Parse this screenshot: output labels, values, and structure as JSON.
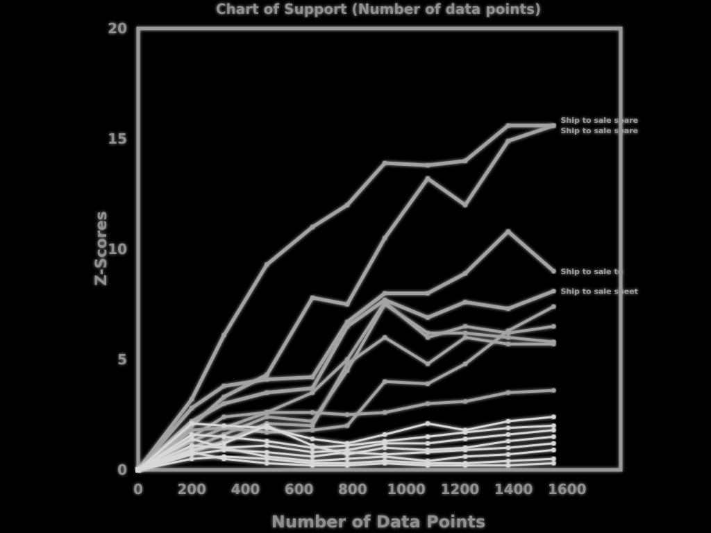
{
  "chart_data": {
    "type": "line",
    "title": "Chart of Support (Number of data points)",
    "xlabel": "Number of Data Points",
    "ylabel": "Z-Scores",
    "xlim": [
      0,
      1800
    ],
    "ylim": [
      0,
      20
    ],
    "x_ticks": [
      0,
      200,
      400,
      600,
      800,
      1000,
      1200,
      1400,
      1600
    ],
    "y_ticks": [
      0,
      5,
      10,
      15,
      20
    ],
    "colors": {
      "background": "#000000",
      "stroke": "#9a9a9a",
      "text": "#8f8f8f"
    },
    "x": [
      0,
      200,
      320,
      480,
      650,
      780,
      920,
      1080,
      1220,
      1380,
      1550
    ],
    "series": [
      {
        "name": "",
        "label": "Ship to sale spare",
        "values": [
          0,
          3.2,
          6.1,
          9.3,
          11.0,
          12.0,
          13.9,
          13.8,
          14.0,
          15.6,
          15.6
        ]
      },
      {
        "name": "",
        "label": "Ship to sale spare",
        "values": [
          0,
          2.0,
          3.3,
          4.3,
          7.8,
          7.5,
          10.5,
          13.2,
          12.0,
          14.9,
          15.6
        ]
      },
      {
        "name": "",
        "label": "Ship to sale to",
        "values": [
          0,
          2.8,
          3.8,
          4.1,
          4.2,
          6.7,
          8.0,
          8.0,
          8.9,
          10.8,
          9.0
        ]
      },
      {
        "name": "",
        "label": "Ship to sale sheet",
        "values": [
          0,
          2.2,
          3.0,
          3.5,
          3.7,
          6.5,
          7.7,
          6.9,
          7.6,
          7.3,
          8.1
        ]
      },
      {
        "name": "",
        "values": [
          0,
          1.5,
          2.4,
          2.6,
          3.5,
          5.0,
          7.6,
          6.0,
          6.5,
          6.2,
          6.5
        ]
      },
      {
        "name": "",
        "values": [
          0,
          1.0,
          1.6,
          2.4,
          2.2,
          4.5,
          7.5,
          6.2,
          6.2,
          6.0,
          5.8
        ]
      },
      {
        "name": "",
        "values": [
          0,
          0.8,
          1.3,
          2.1,
          2.0,
          4.8,
          6.0,
          4.8,
          6.0,
          5.7,
          5.7
        ]
      },
      {
        "name": "",
        "values": [
          0,
          1.8,
          1.9,
          1.7,
          1.8,
          2.0,
          4.0,
          3.9,
          4.8,
          6.3,
          7.4
        ]
      },
      {
        "name": "",
        "values": [
          0,
          1.3,
          1.9,
          2.6,
          2.6,
          2.5,
          2.6,
          3.0,
          3.1,
          3.5,
          3.6
        ]
      },
      {
        "name": "",
        "values": [
          0,
          2.1,
          2.0,
          1.9,
          1.4,
          1.2,
          1.6,
          2.1,
          1.8,
          2.2,
          2.4
        ]
      },
      {
        "name": "",
        "values": [
          0,
          1.6,
          1.5,
          1.3,
          1.0,
          1.1,
          1.3,
          1.5,
          1.7,
          1.9,
          2.0
        ]
      },
      {
        "name": "",
        "values": [
          0,
          1.1,
          1.0,
          1.1,
          0.8,
          0.9,
          1.2,
          1.2,
          1.4,
          1.6,
          1.8
        ]
      },
      {
        "name": "",
        "values": [
          0,
          0.9,
          1.2,
          2.0,
          1.1,
          0.7,
          1.0,
          0.9,
          1.0,
          1.3,
          1.5
        ]
      },
      {
        "name": "",
        "values": [
          0,
          0.7,
          0.9,
          0.8,
          0.6,
          0.8,
          0.7,
          0.8,
          0.9,
          1.0,
          1.2
        ]
      },
      {
        "name": "",
        "values": [
          0,
          1.4,
          1.0,
          0.6,
          0.4,
          0.5,
          0.6,
          0.4,
          0.6,
          0.7,
          0.9
        ]
      },
      {
        "name": "",
        "values": [
          0,
          0.5,
          0.6,
          0.5,
          0.3,
          0.3,
          0.4,
          0.3,
          0.3,
          0.4,
          0.5
        ]
      },
      {
        "name": "",
        "values": [
          0,
          0.8,
          0.5,
          0.3,
          0.2,
          0.2,
          0.3,
          0.2,
          0.2,
          0.2,
          0.3
        ]
      }
    ],
    "grid": false,
    "legend": "none"
  }
}
